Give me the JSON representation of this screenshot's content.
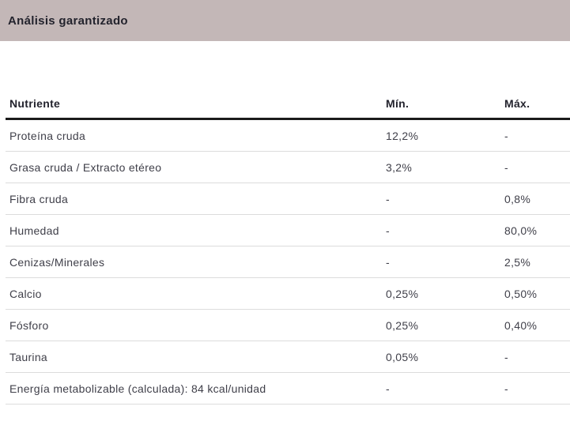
{
  "panel": {
    "title": "Análisis garantizado"
  },
  "table": {
    "columns": [
      "Nutriente",
      "Mín.",
      "Máx."
    ],
    "rows": [
      {
        "nutriente": "Proteína cruda",
        "min": "12,2%",
        "max": "-"
      },
      {
        "nutriente": "Grasa cruda / Extracto etéreo",
        "min": "3,2%",
        "max": "-"
      },
      {
        "nutriente": "Fibra cruda",
        "min": "-",
        "max": "0,8%"
      },
      {
        "nutriente": "Humedad",
        "min": "-",
        "max": "80,0%"
      },
      {
        "nutriente": "Cenizas/Minerales",
        "min": "-",
        "max": "2,5%"
      },
      {
        "nutriente": "Calcio",
        "min": "0,25%",
        "max": "0,50%"
      },
      {
        "nutriente": "Fósforo",
        "min": "0,25%",
        "max": "0,40%"
      },
      {
        "nutriente": "Taurina",
        "min": "0,05%",
        "max": "-"
      },
      {
        "nutriente": "Energía metabolizable (calculada): 84 kcal/unidad",
        "min": "-",
        "max": "-"
      }
    ]
  },
  "colors": {
    "header_bar_bg": "#c3b7b7",
    "title_text": "#23232d",
    "header_text": "#23232d",
    "row_text": "#40404a",
    "thick_border": "#1b1b1b",
    "row_border": "#dcdcdc",
    "page_bg": "#ffffff"
  }
}
